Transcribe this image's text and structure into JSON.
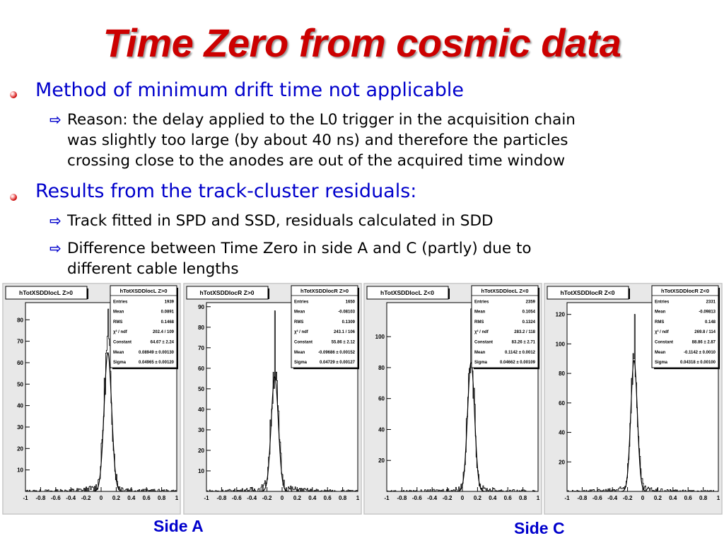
{
  "slide": {
    "title": "Time Zero from cosmic data",
    "bullets": [
      {
        "text": "Method of minimum drift time not applicable",
        "sub": [
          {
            "lines": [
              "Reason: the delay applied to the L0 trigger in the acquisition chain",
              "was slightly too large (by about 40 ns) and therefore the particles",
              "crossing close to the anodes are out of the acquired time window"
            ]
          }
        ]
      },
      {
        "text": "Results from the track-cluster residuals:",
        "sub": [
          {
            "lines": [
              "Track fitted in SPD and SSD, residuals calculated in SDD"
            ]
          },
          {
            "lines": [
              "Difference between Time Zero in side A and C (partly) due to",
              "different cable lengths"
            ]
          }
        ]
      }
    ],
    "side_a_label": "Side A",
    "side_c_label": "Side C",
    "colors": {
      "title": "#cc0000",
      "bullet_text": "#0000cc",
      "frame_bg": "#e8e8e8"
    }
  },
  "chart_data": [
    {
      "type": "line",
      "title": "hTotXSDDlocL Z>0",
      "xlim": [
        -1,
        1
      ],
      "ylim": [
        0,
        88
      ],
      "xticks": [
        "-1",
        "-0.8",
        "-0.6",
        "-0.4",
        "-0.2",
        "0",
        "0.2",
        "0.4",
        "0.6",
        "0.8",
        "1"
      ],
      "yticks": [
        0,
        10,
        20,
        30,
        40,
        50,
        60,
        70,
        80
      ],
      "stats": {
        "title": "hTotXSDDlocL Z>0",
        "rows": [
          [
            "Entries",
            "1939"
          ],
          [
            "Mean",
            "0.0891"
          ],
          [
            "RMS",
            "0.1468"
          ],
          [
            "χ² / ndf",
            "202.4 / 109"
          ],
          [
            "Constant",
            "64.67 ± 2.24"
          ],
          [
            "Mean",
            "0.08949 ± 0.00130"
          ],
          [
            "Sigma",
            "0.04965 ± 0.00120"
          ]
        ]
      },
      "fit": {
        "constant": 64.67,
        "mean": 0.08949,
        "sigma": 0.04965
      },
      "peak": 85
    },
    {
      "type": "line",
      "title": "hTotXSDDlocR Z>0",
      "xlim": [
        -1,
        1
      ],
      "ylim": [
        0,
        92
      ],
      "xticks": [
        "-1",
        "-0.8",
        "-0.6",
        "-0.4",
        "-0.2",
        "0",
        "0.2",
        "0.4",
        "0.6",
        "0.8",
        "1"
      ],
      "yticks": [
        0,
        10,
        20,
        30,
        40,
        50,
        60,
        70,
        80,
        90
      ],
      "stats": {
        "title": "hTotXSDDlocR Z>0",
        "rows": [
          [
            "Entries",
            "1650"
          ],
          [
            "Mean",
            "-0.08103"
          ],
          [
            "RMS",
            "0.1309"
          ],
          [
            "χ² / ndf",
            "243.1 / 106"
          ],
          [
            "Constant",
            "55.86 ± 2.12"
          ],
          [
            "Mean",
            "-0.09686 ± 0.00152"
          ],
          [
            "Sigma",
            "0.04729 ± 0.00127"
          ]
        ]
      },
      "fit": {
        "constant": 55.86,
        "mean": -0.09686,
        "sigma": 0.04729
      },
      "peak": 88
    },
    {
      "type": "line",
      "title": "hTotXSDDlocL Z<0",
      "xlim": [
        -1,
        1
      ],
      "ylim": [
        0,
        122
      ],
      "xticks": [
        "-1",
        "-0.8",
        "-0.6",
        "-0.4",
        "-0.2",
        "0",
        "0.2",
        "0.4",
        "0.6",
        "0.8",
        "1"
      ],
      "yticks": [
        0,
        20,
        40,
        60,
        80,
        100
      ],
      "stats": {
        "title": "hTotXSDDlocL Z<0",
        "rows": [
          [
            "Entries",
            "2359"
          ],
          [
            "Mean",
            "0.1054"
          ],
          [
            "RMS",
            "0.1324"
          ],
          [
            "χ² / ndf",
            "283.2 / 118"
          ],
          [
            "Constant",
            "83.26 ± 2.71"
          ],
          [
            "Mean",
            "0.1142 ± 0.0012"
          ],
          [
            "Sigma",
            "0.04662 ± 0.00109"
          ]
        ]
      },
      "fit": {
        "constant": 83.26,
        "mean": 0.1142,
        "sigma": 0.04662
      },
      "peak": 118
    },
    {
      "type": "line",
      "title": "hTotXSDDlocR Z<0",
      "xlim": [
        -1,
        1
      ],
      "ylim": [
        0,
        128
      ],
      "xticks": [
        "-1",
        "-0.8",
        "-0.6",
        "-0.4",
        "-0.2",
        "0",
        "0.2",
        "0.4",
        "0.6",
        "0.8",
        "1"
      ],
      "yticks": [
        0,
        20,
        40,
        60,
        80,
        100,
        120
      ],
      "stats": {
        "title": "hTotXSDDlocR Z<0",
        "rows": [
          [
            "Entries",
            "2331"
          ],
          [
            "Mean",
            "-0.09813"
          ],
          [
            "RMS",
            "0.148"
          ],
          [
            "χ² / ndf",
            "269.8 / 114"
          ],
          [
            "Constant",
            "88.86 ± 2.87"
          ],
          [
            "Mean",
            "-0.1142 ± 0.0010"
          ],
          [
            "Sigma",
            "0.04318 ± 0.00100"
          ]
        ]
      },
      "fit": {
        "constant": 88.86,
        "mean": -0.1142,
        "sigma": 0.04318
      },
      "peak": 120
    }
  ]
}
